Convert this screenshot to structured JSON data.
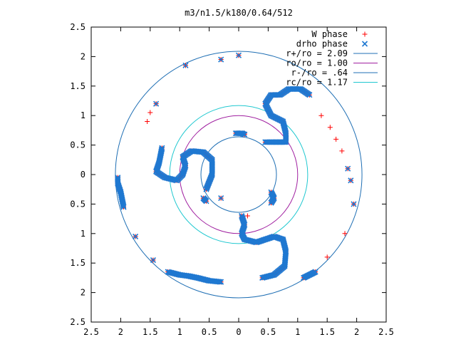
{
  "chart_data": {
    "type": "scatter",
    "title": "m3/n1.5/k180/0.64/512",
    "xlabel": "",
    "ylabel": "",
    "xlim": [
      -2.5,
      2.5
    ],
    "ylim": [
      -2.5,
      2.5
    ],
    "x_ticks": [
      -2.5,
      -2,
      -1.5,
      -1,
      -0.5,
      0,
      0.5,
      1,
      1.5,
      2,
      2.5
    ],
    "x_tick_labels": [
      "2.5",
      "2",
      "1.5",
      "1",
      "0.5",
      "0",
      "0.5",
      "1",
      "1.5",
      "2",
      "2.5"
    ],
    "y_ticks": [
      2.5,
      2,
      1.5,
      1,
      0.5,
      0,
      -0.5,
      -1,
      -1.5,
      -2,
      -2.5
    ],
    "y_tick_labels": [
      "2.5",
      "2",
      "1.5",
      "1",
      "0.5",
      "0",
      "0.5",
      "1",
      "1.5",
      "2",
      "2.5"
    ],
    "grid": false,
    "legend_position": "top-right",
    "circles": [
      {
        "name": "r+/ro = 2.09",
        "radius": 2.09,
        "color": "#1f6fb4"
      },
      {
        "name": "ro/ro = 1.00",
        "radius": 1.0,
        "color": "#a020a0"
      },
      {
        "name": "r-/ro = .64",
        "radius": 0.64,
        "color": "#1f6fb4"
      },
      {
        "name": "rc/ro = 1.17",
        "radius": 1.17,
        "color": "#20c8d0"
      }
    ],
    "series": [
      {
        "name": "W phase",
        "marker": "+",
        "color": "#ff0000",
        "arms": [
          [
            [
              -1.3,
              0.45
            ],
            [
              -1.35,
              0.2
            ],
            [
              -1.4,
              0.05
            ],
            [
              -1.25,
              -0.05
            ],
            [
              -1.05,
              -0.1
            ],
            [
              -0.95,
              0.0
            ],
            [
              -0.9,
              0.15
            ],
            [
              -0.95,
              0.3
            ],
            [
              -0.8,
              0.4
            ],
            [
              -0.6,
              0.38
            ],
            [
              -0.45,
              0.25
            ],
            [
              -0.45,
              0.0
            ],
            [
              -0.55,
              -0.25
            ]
          ],
          [
            [
              0.45,
              0.55
            ],
            [
              0.6,
              0.55
            ],
            [
              0.8,
              0.55
            ],
            [
              0.8,
              0.7
            ],
            [
              0.75,
              0.9
            ],
            [
              0.55,
              1.0
            ],
            [
              0.45,
              1.2
            ],
            [
              0.55,
              1.35
            ],
            [
              0.7,
              1.35
            ],
            [
              0.85,
              1.45
            ],
            [
              1.05,
              1.45
            ],
            [
              1.2,
              1.35
            ]
          ],
          [
            [
              0.05,
              -0.7
            ],
            [
              0.1,
              -0.85
            ],
            [
              0.05,
              -1.0
            ],
            [
              0.1,
              -1.1
            ],
            [
              0.3,
              -1.15
            ],
            [
              0.45,
              -1.1
            ],
            [
              0.6,
              -1.05
            ],
            [
              0.75,
              -1.1
            ],
            [
              0.8,
              -1.3
            ],
            [
              0.78,
              -1.55
            ],
            [
              0.6,
              -1.7
            ],
            [
              0.4,
              -1.75
            ]
          ],
          [
            [
              -0.05,
              0.7
            ],
            [
              0.05,
              0.7
            ],
            [
              0.1,
              0.68
            ]
          ],
          [
            [
              0.55,
              -0.3
            ],
            [
              0.6,
              -0.4
            ],
            [
              0.55,
              -0.48
            ]
          ],
          [
            [
              -0.6,
              -0.4
            ],
            [
              -0.55,
              -0.45
            ]
          ],
          [
            [
              -1.2,
              -1.65
            ],
            [
              -1.0,
              -1.7
            ],
            [
              -0.85,
              -1.72
            ],
            [
              -0.7,
              -1.75
            ],
            [
              -0.5,
              -1.8
            ],
            [
              -0.3,
              -1.82
            ]
          ],
          [
            [
              -2.05,
              -0.05
            ],
            [
              -2.05,
              -0.15
            ],
            [
              -2.0,
              -0.3
            ],
            [
              -1.95,
              -0.55
            ]
          ],
          [
            [
              1.1,
              -1.75
            ],
            [
              1.2,
              -1.7
            ],
            [
              1.3,
              -1.65
            ]
          ]
        ],
        "points": [
          [
            -0.3,
            1.95
          ],
          [
            0.0,
            2.02
          ],
          [
            0.05,
            0.7
          ],
          [
            0.1,
            0.7
          ],
          [
            1.4,
            1.0
          ],
          [
            1.55,
            0.8
          ],
          [
            1.65,
            0.6
          ],
          [
            1.75,
            0.4
          ],
          [
            1.85,
            0.1
          ],
          [
            1.9,
            -0.1
          ],
          [
            1.95,
            -0.5
          ],
          [
            1.8,
            -1.0
          ],
          [
            1.5,
            -1.4
          ],
          [
            0.15,
            -0.7
          ],
          [
            -1.75,
            -1.05
          ],
          [
            -1.45,
            -1.45
          ],
          [
            -1.55,
            0.9
          ],
          [
            -1.5,
            1.05
          ],
          [
            -1.4,
            1.2
          ],
          [
            -0.9,
            1.85
          ],
          [
            -0.3,
            -0.4
          ]
        ]
      },
      {
        "name": "drho phase",
        "marker": "x",
        "color": "#1f78d1",
        "arms": [
          [
            [
              -1.3,
              0.45
            ],
            [
              -1.35,
              0.2
            ],
            [
              -1.4,
              0.05
            ],
            [
              -1.25,
              -0.05
            ],
            [
              -1.05,
              -0.1
            ],
            [
              -0.95,
              0.0
            ],
            [
              -0.9,
              0.15
            ],
            [
              -0.95,
              0.3
            ],
            [
              -0.8,
              0.4
            ],
            [
              -0.6,
              0.38
            ],
            [
              -0.45,
              0.25
            ],
            [
              -0.45,
              0.0
            ],
            [
              -0.55,
              -0.25
            ]
          ],
          [
            [
              0.45,
              0.55
            ],
            [
              0.6,
              0.55
            ],
            [
              0.8,
              0.55
            ],
            [
              0.8,
              0.7
            ],
            [
              0.75,
              0.9
            ],
            [
              0.55,
              1.0
            ],
            [
              0.45,
              1.2
            ],
            [
              0.55,
              1.35
            ],
            [
              0.7,
              1.35
            ],
            [
              0.85,
              1.45
            ],
            [
              1.05,
              1.45
            ],
            [
              1.2,
              1.35
            ]
          ],
          [
            [
              0.05,
              -0.7
            ],
            [
              0.1,
              -0.85
            ],
            [
              0.05,
              -1.0
            ],
            [
              0.1,
              -1.1
            ],
            [
              0.3,
              -1.15
            ],
            [
              0.45,
              -1.1
            ],
            [
              0.6,
              -1.05
            ],
            [
              0.75,
              -1.1
            ],
            [
              0.8,
              -1.3
            ],
            [
              0.78,
              -1.55
            ],
            [
              0.6,
              -1.7
            ],
            [
              0.4,
              -1.75
            ]
          ],
          [
            [
              -0.05,
              0.7
            ],
            [
              0.05,
              0.7
            ],
            [
              0.1,
              0.68
            ]
          ],
          [
            [
              0.55,
              -0.3
            ],
            [
              0.6,
              -0.4
            ],
            [
              0.55,
              -0.48
            ]
          ],
          [
            [
              -0.6,
              -0.4
            ],
            [
              -0.55,
              -0.45
            ]
          ],
          [
            [
              -1.2,
              -1.65
            ],
            [
              -1.0,
              -1.7
            ],
            [
              -0.85,
              -1.72
            ],
            [
              -0.7,
              -1.75
            ],
            [
              -0.5,
              -1.8
            ],
            [
              -0.3,
              -1.82
            ]
          ],
          [
            [
              -2.05,
              -0.05
            ],
            [
              -2.05,
              -0.15
            ],
            [
              -2.0,
              -0.3
            ],
            [
              -1.95,
              -0.55
            ]
          ],
          [
            [
              1.1,
              -1.75
            ],
            [
              1.2,
              -1.7
            ],
            [
              1.3,
              -1.65
            ]
          ]
        ],
        "points": [
          [
            -0.3,
            1.95
          ],
          [
            0.0,
            2.02
          ],
          [
            0.05,
            0.7
          ],
          [
            1.85,
            0.1
          ],
          [
            1.9,
            -0.1
          ],
          [
            1.95,
            -0.5
          ],
          [
            -1.75,
            -1.05
          ],
          [
            -1.45,
            -1.45
          ],
          [
            -1.4,
            1.2
          ],
          [
            -0.9,
            1.85
          ],
          [
            -0.3,
            -0.4
          ]
        ]
      }
    ]
  }
}
